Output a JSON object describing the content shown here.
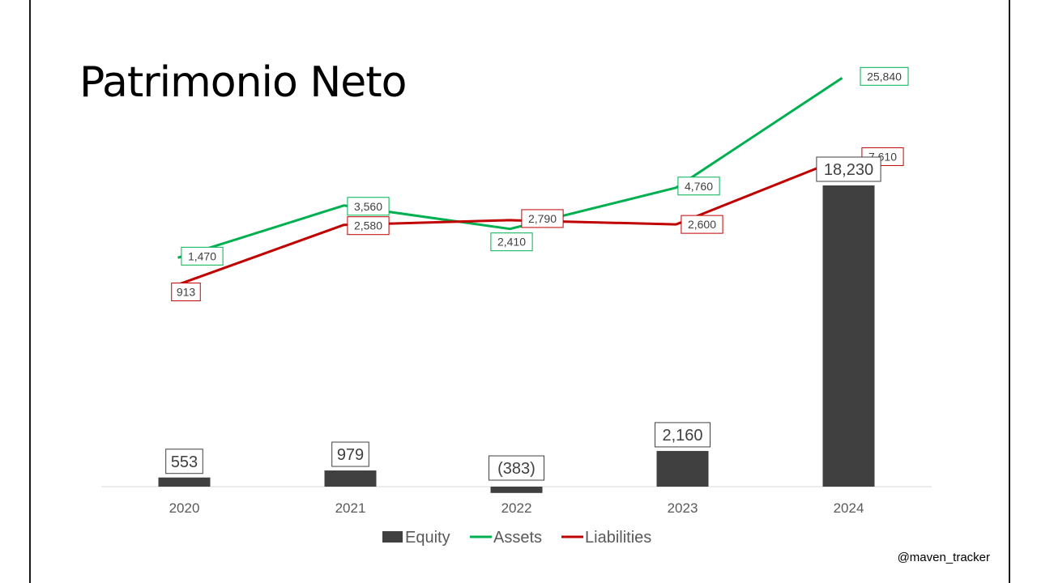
{
  "title": "Patrimonio Neto",
  "credit": "@maven_tracker",
  "chart_data": {
    "type": "bar",
    "categories": [
      "2020",
      "2021",
      "2022",
      "2023",
      "2024"
    ],
    "series": [
      {
        "name": "Equity",
        "type": "bar",
        "color": "#404040",
        "values": [
          553,
          979,
          -383,
          2160,
          18230
        ],
        "labels": [
          "553",
          "979",
          "(383)",
          "2,160",
          "18,230"
        ]
      },
      {
        "name": "Assets",
        "type": "line",
        "color": "#00B050",
        "values": [
          1470,
          3560,
          2410,
          4760,
          25840
        ],
        "labels": [
          "1,470",
          "3,560",
          "2,410",
          "4,760",
          "25,840"
        ]
      },
      {
        "name": "Liabilities",
        "type": "line",
        "color": "#C00000",
        "values": [
          913,
          2580,
          2790,
          2600,
          7610
        ],
        "labels": [
          "913",
          "2,580",
          "2,790",
          "2,600",
          "7,610"
        ]
      }
    ],
    "legend": "bottom",
    "grid": false
  }
}
